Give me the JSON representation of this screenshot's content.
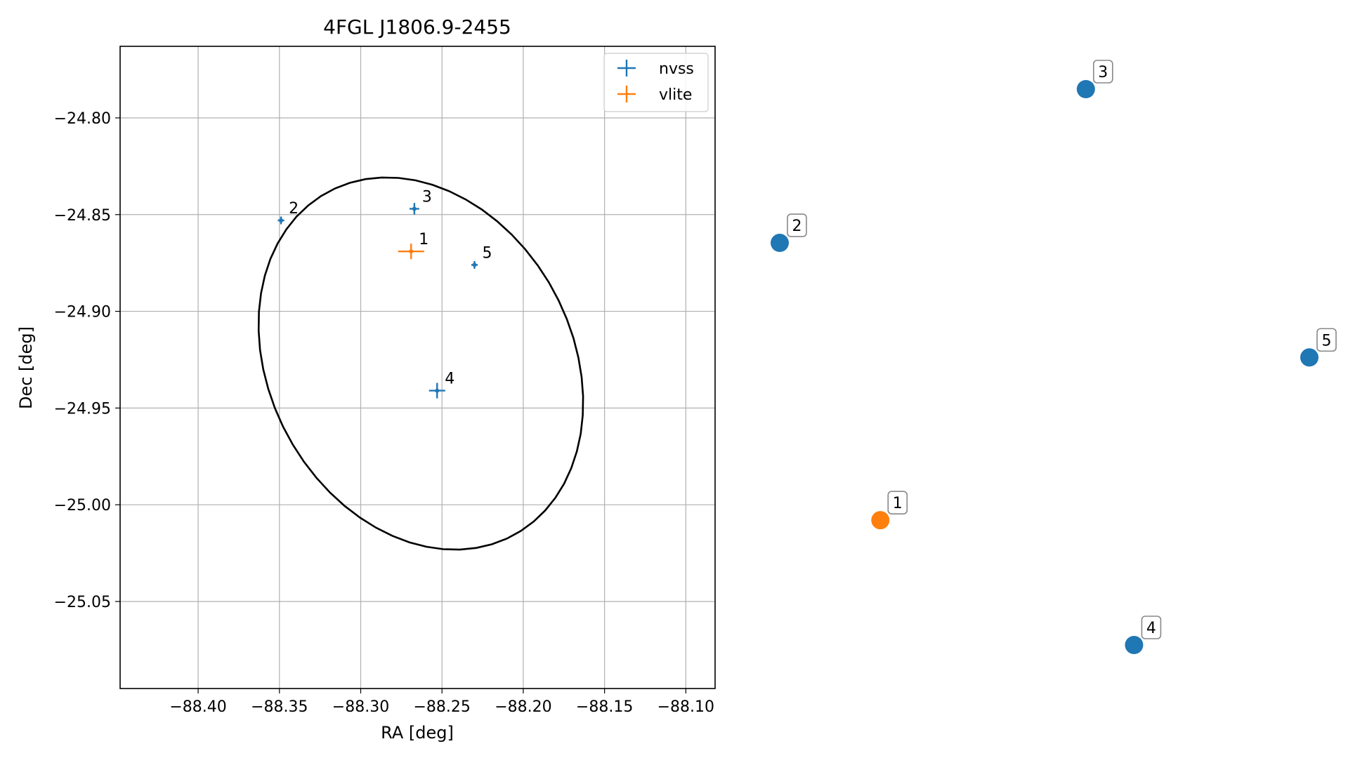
{
  "chart_data": [
    {
      "type": "scatter",
      "title": "4FGL J1806.9-2455",
      "xlabel": "RA [deg]",
      "ylabel": "Dec [deg]",
      "xlim": [
        -88.448,
        -88.082
      ],
      "ylim": [
        -25.095,
        -24.763
      ],
      "xticks": [
        -88.4,
        -88.35,
        -88.3,
        -88.25,
        -88.2,
        -88.15,
        -88.1
      ],
      "xtick_labels": [
        "−88.40",
        "−88.35",
        "−88.30",
        "−88.25",
        "−88.20",
        "−88.15",
        "−88.10"
      ],
      "yticks": [
        -24.8,
        -24.85,
        -24.9,
        -24.95,
        -25.0,
        -25.05
      ],
      "ytick_labels": [
        "−24.80",
        "−24.85",
        "−24.90",
        "−24.95",
        "−25.00",
        "−25.05"
      ],
      "grid": true,
      "legend_position": "top-right",
      "series": [
        {
          "name": "nvss",
          "color": "#1f77b4",
          "points": [
            {
              "label": "2",
              "x": -88.349,
              "y": -24.853,
              "xerr": 0.002,
              "yerr": 0.002
            },
            {
              "label": "3",
              "x": -88.267,
              "y": -24.847,
              "xerr": 0.003,
              "yerr": 0.003
            },
            {
              "label": "5",
              "x": -88.23,
              "y": -24.876,
              "xerr": 0.002,
              "yerr": 0.002
            },
            {
              "label": "4",
              "x": -88.253,
              "y": -24.941,
              "xerr": 0.005,
              "yerr": 0.004
            }
          ]
        },
        {
          "name": "vlite",
          "color": "#ff7f0e",
          "points": [
            {
              "label": "1",
              "x": -88.269,
              "y": -24.869,
              "xerr": 0.008,
              "yerr": 0.004
            }
          ]
        }
      ],
      "ellipse": {
        "center": [
          -88.263,
          -24.927
        ],
        "semi_major": 0.108,
        "semi_minor": 0.087,
        "angle_deg": -40,
        "color": "#000000"
      }
    },
    {
      "type": "scatter",
      "axes_visible": false,
      "points": [
        {
          "label": "2",
          "x": 0.0,
          "y": 0.59,
          "color": "#1f77b4"
        },
        {
          "label": "3",
          "x": 0.578,
          "y": 0.845,
          "color": "#1f77b4"
        },
        {
          "label": "5",
          "x": 1.0,
          "y": 0.4,
          "color": "#1f77b4"
        },
        {
          "label": "1",
          "x": 0.19,
          "y": 0.13,
          "color": "#ff7f0e"
        },
        {
          "label": "4",
          "x": 0.669,
          "y": -0.077,
          "color": "#1f77b4"
        }
      ]
    }
  ]
}
